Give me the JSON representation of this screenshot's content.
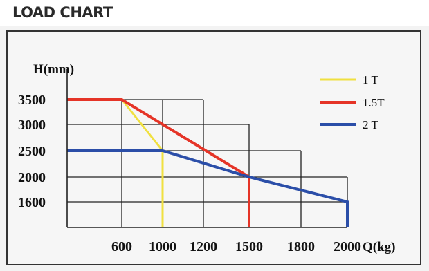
{
  "header": {
    "title": "LOAD CHART"
  },
  "chart_data": {
    "type": "line",
    "title": "LOAD CHART",
    "xlabel": "Q(kg)",
    "ylabel": "H(mm)",
    "x_ticks": [
      600,
      1000,
      1200,
      1500,
      1800,
      2000
    ],
    "x_tick_labels": [
      "600",
      "1000",
      "1200",
      "1500",
      "1800",
      "2000"
    ],
    "y_ticks": [
      1600,
      2000,
      2500,
      3000,
      3500
    ],
    "y_tick_labels": [
      "1600",
      "2000",
      "2500",
      "3000",
      "3500"
    ],
    "grid": [
      {
        "x": [
          600,
          1000,
          1200,
          1500,
          1800,
          2000
        ],
        "height_at": [
          3500,
          3500,
          3500,
          3000,
          2500,
          2000
        ]
      }
    ],
    "legend_position": "top-right",
    "series": [
      {
        "name": "1 T",
        "color": "#f0e040",
        "points": [
          [
            0,
            3500
          ],
          [
            600,
            3500
          ],
          [
            1000,
            2500
          ],
          [
            1000,
            1000
          ]
        ]
      },
      {
        "name": "1.5T",
        "color": "#e53427",
        "points": [
          [
            0,
            3500
          ],
          [
            600,
            3500
          ],
          [
            1500,
            2000
          ],
          [
            1500,
            1000
          ]
        ]
      },
      {
        "name": "2 T",
        "color": "#2b4ea8",
        "points": [
          [
            0,
            2500
          ],
          [
            1000,
            2500
          ],
          [
            1500,
            2000
          ],
          [
            2000,
            1600
          ],
          [
            2000,
            1000
          ]
        ]
      }
    ]
  }
}
